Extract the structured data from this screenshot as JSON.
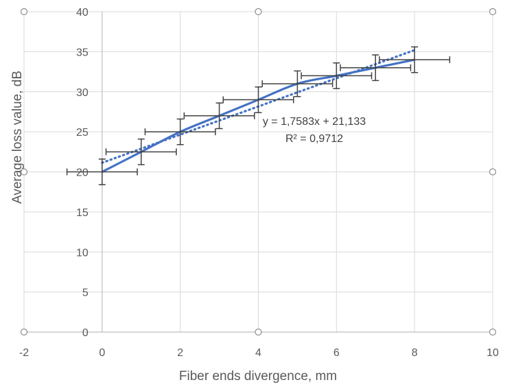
{
  "chart_data": {
    "type": "scatter",
    "title": "",
    "xlabel": "Fiber ends divergence, mm",
    "ylabel": "Average loss value, dB",
    "xlim": [
      -2,
      10
    ],
    "ylim": [
      0,
      40
    ],
    "x_ticks": [
      "-2",
      "0",
      "2",
      "4",
      "6",
      "8",
      "10"
    ],
    "y_ticks": [
      "0",
      "5",
      "10",
      "15",
      "20",
      "25",
      "30",
      "35",
      "40"
    ],
    "grid": true,
    "series": [
      {
        "line": "smooth",
        "color": "#4472C4",
        "x": [
          0,
          1,
          2,
          3,
          4,
          5,
          6,
          7,
          8
        ],
        "y": [
          20,
          22.5,
          25,
          27,
          29,
          31,
          32,
          33,
          34
        ],
        "x_error": 0.9,
        "y_error": [
          1.6,
          1.6,
          1.6,
          1.6,
          1.6,
          1.6,
          1.6,
          1.6,
          1.6
        ]
      }
    ],
    "trendline": {
      "type": "linear",
      "color": "#4472C4",
      "style": "dotted",
      "slope": 1.7583,
      "intercept": 21.133,
      "x_range": [
        0,
        8
      ],
      "equation": "y = 1,7583x + 21,133",
      "r_squared": "R² = 0,9712"
    },
    "error_bar_color": "#404040"
  }
}
